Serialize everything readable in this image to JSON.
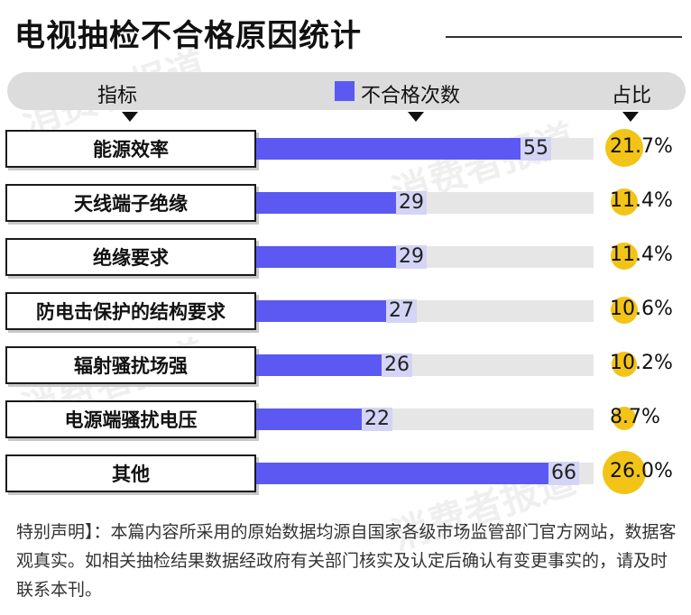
{
  "title": "电视抽检不合格原因统计",
  "header": {
    "col_indicator": "指标",
    "col_count": "不合格次数",
    "col_share": "占比"
  },
  "colors": {
    "bar": "#5b59f2",
    "track": "#e6e6e6",
    "highlight": "#f2c418"
  },
  "watermark": "消费者报道",
  "chart_data": {
    "type": "bar",
    "orientation": "horizontal",
    "title": "电视抽检不合格原因统计",
    "categories": [
      "能源效率",
      "天线端子绝缘",
      "绝缘要求",
      "防电击保护的结构要求",
      "辐射骚扰场强",
      "电源端骚扰电压",
      "其他"
    ],
    "series": [
      {
        "name": "不合格次数",
        "values": [
          55,
          29,
          29,
          27,
          26,
          22,
          66
        ]
      }
    ],
    "percent": [
      "21.7%",
      "11.4%",
      "11.4%",
      "10.6%",
      "10.2%",
      "8.7%",
      "26.0%"
    ],
    "percent_values": [
      21.7,
      11.4,
      11.4,
      10.6,
      10.2,
      8.7,
      26.0
    ],
    "xlim": [
      0,
      66
    ]
  },
  "footnote": "特别声明】：本篇内容所采用的原始数据均源自国家各级市场监管部门官方网站，数据客观真实。如相关抽检结果数据经政府有关部门核实及认定后确认有变更事实的，请及时联系本刊。"
}
